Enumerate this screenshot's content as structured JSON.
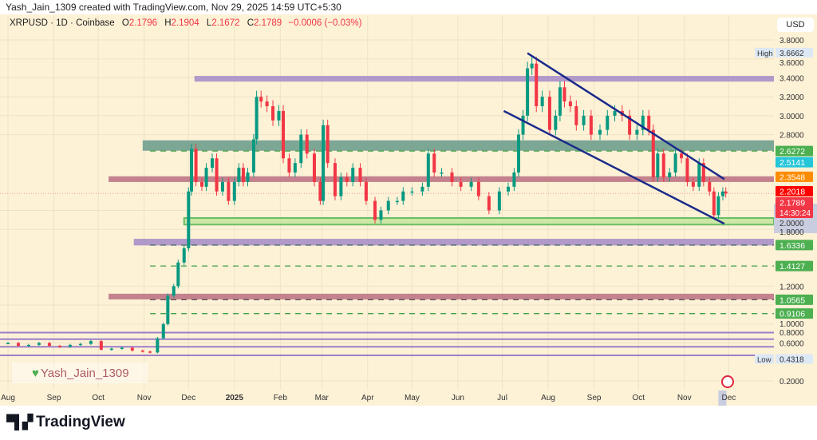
{
  "credit": "Yash_Jain_1309 created with TradingView.com, Nov 29, 2025 14:59 UTC+5:30",
  "legend": {
    "symbol": "XRPUSD · 1D · Coinbase",
    "o_label": "O",
    "o": "2.1796",
    "h_label": "H",
    "h": "2.1904",
    "l_label": "L",
    "l": "2.1672",
    "c_label": "C",
    "c": "2.1789",
    "change": "−0.0006 (−0.03%)"
  },
  "currency": "USD",
  "watermark": "Yash_Jain_1309",
  "brand": "TradingView",
  "chart_data": {
    "type": "candlestick",
    "series_note_values": "approximate closes read from chart",
    "colors": {
      "up": "#089981",
      "down": "#f23645",
      "background": "#fdf1d6"
    },
    "ylim": [
      0.1,
      3.95
    ],
    "y_ticks": [
      "3.8000",
      "3.6000",
      "3.4000",
      "3.2000",
      "3.0000",
      "2.8000",
      "2.0000",
      "1.8000",
      "1.2000",
      "1.0000",
      "0.8000",
      "0.6000",
      "0.2000"
    ],
    "x_ticks": [
      {
        "label": "Aug",
        "date": "2024-08-01"
      },
      {
        "label": "Sep",
        "date": "2024-09-01"
      },
      {
        "label": "Oct",
        "date": "2024-10-01"
      },
      {
        "label": "Nov",
        "date": "2024-11-01"
      },
      {
        "label": "Dec",
        "date": "2024-12-01"
      },
      {
        "label": "2025",
        "date": "2025-01-01"
      },
      {
        "label": "Feb",
        "date": "2025-02-01"
      },
      {
        "label": "Mar",
        "date": "2025-03-01"
      },
      {
        "label": "Apr",
        "date": "2025-04-01"
      },
      {
        "label": "May",
        "date": "2025-05-01"
      },
      {
        "label": "Jun",
        "date": "2025-06-01"
      },
      {
        "label": "Jul",
        "date": "2025-07-01"
      },
      {
        "label": "Aug",
        "date": "2025-08-01"
      },
      {
        "label": "Sep",
        "date": "2025-09-01"
      },
      {
        "label": "Oct",
        "date": "2025-10-01"
      },
      {
        "label": "Nov",
        "date": "2025-11-01"
      },
      {
        "label": "Dec",
        "date": "2025-12-01"
      }
    ],
    "closes": [
      [
        "2024-08-01",
        0.6
      ],
      [
        "2024-08-08",
        0.57
      ],
      [
        "2024-08-15",
        0.58
      ],
      [
        "2024-08-22",
        0.6
      ],
      [
        "2024-08-29",
        0.57
      ],
      [
        "2024-09-05",
        0.56
      ],
      [
        "2024-09-12",
        0.58
      ],
      [
        "2024-09-19",
        0.59
      ],
      [
        "2024-09-26",
        0.62
      ],
      [
        "2024-10-03",
        0.53
      ],
      [
        "2024-10-10",
        0.54
      ],
      [
        "2024-10-17",
        0.55
      ],
      [
        "2024-10-24",
        0.52
      ],
      [
        "2024-10-31",
        0.51
      ],
      [
        "2024-11-05",
        0.5
      ],
      [
        "2024-11-10",
        0.65
      ],
      [
        "2024-11-14",
        0.8
      ],
      [
        "2024-11-17",
        1.1
      ],
      [
        "2024-11-21",
        1.2
      ],
      [
        "2024-11-24",
        1.45
      ],
      [
        "2024-11-28",
        1.6
      ],
      [
        "2024-12-01",
        2.2
      ],
      [
        "2024-12-03",
        2.65
      ],
      [
        "2024-12-06",
        2.3
      ],
      [
        "2024-12-10",
        2.25
      ],
      [
        "2024-12-13",
        2.45
      ],
      [
        "2024-12-17",
        2.55
      ],
      [
        "2024-12-20",
        2.2
      ],
      [
        "2024-12-24",
        2.3
      ],
      [
        "2024-12-28",
        2.1
      ],
      [
        "2025-01-01",
        2.3
      ],
      [
        "2025-01-04",
        2.45
      ],
      [
        "2025-01-07",
        2.3
      ],
      [
        "2025-01-10",
        2.4
      ],
      [
        "2025-01-14",
        2.75
      ],
      [
        "2025-01-16",
        3.2
      ],
      [
        "2025-01-19",
        3.15
      ],
      [
        "2025-01-23",
        3.1
      ],
      [
        "2025-01-27",
        2.95
      ],
      [
        "2025-01-31",
        3.05
      ],
      [
        "2025-02-03",
        2.55
      ],
      [
        "2025-02-07",
        2.4
      ],
      [
        "2025-02-11",
        2.5
      ],
      [
        "2025-02-15",
        2.8
      ],
      [
        "2025-02-19",
        2.6
      ],
      [
        "2025-02-24",
        2.3
      ],
      [
        "2025-02-28",
        2.1
      ],
      [
        "2025-03-02",
        2.9
      ],
      [
        "2025-03-05",
        2.5
      ],
      [
        "2025-03-10",
        2.15
      ],
      [
        "2025-03-14",
        2.35
      ],
      [
        "2025-03-18",
        2.3
      ],
      [
        "2025-03-22",
        2.45
      ],
      [
        "2025-03-27",
        2.3
      ],
      [
        "2025-03-31",
        2.1
      ],
      [
        "2025-04-06",
        1.9
      ],
      [
        "2025-04-10",
        2.0
      ],
      [
        "2025-04-15",
        2.1
      ],
      [
        "2025-04-21",
        2.1
      ],
      [
        "2025-04-25",
        2.2
      ],
      [
        "2025-05-01",
        2.2
      ],
      [
        "2025-05-08",
        2.25
      ],
      [
        "2025-05-12",
        2.6
      ],
      [
        "2025-05-16",
        2.4
      ],
      [
        "2025-05-21",
        2.4
      ],
      [
        "2025-05-28",
        2.3
      ],
      [
        "2025-06-03",
        2.25
      ],
      [
        "2025-06-10",
        2.3
      ],
      [
        "2025-06-15",
        2.15
      ],
      [
        "2025-06-22",
        2.0
      ],
      [
        "2025-06-29",
        2.2
      ],
      [
        "2025-07-05",
        2.25
      ],
      [
        "2025-07-09",
        2.4
      ],
      [
        "2025-07-12",
        2.8
      ],
      [
        "2025-07-15",
        3.0
      ],
      [
        "2025-07-18",
        3.5
      ],
      [
        "2025-07-21",
        3.55
      ],
      [
        "2025-07-24",
        3.1
      ],
      [
        "2025-07-28",
        3.2
      ],
      [
        "2025-08-02",
        2.85
      ],
      [
        "2025-08-06",
        3.0
      ],
      [
        "2025-08-09",
        3.3
      ],
      [
        "2025-08-12",
        3.15
      ],
      [
        "2025-08-16",
        3.1
      ],
      [
        "2025-08-20",
        2.9
      ],
      [
        "2025-08-25",
        3.0
      ],
      [
        "2025-08-30",
        2.8
      ],
      [
        "2025-09-05",
        2.85
      ],
      [
        "2025-09-10",
        3.0
      ],
      [
        "2025-09-15",
        3.05
      ],
      [
        "2025-09-20",
        3.0
      ],
      [
        "2025-09-25",
        2.8
      ],
      [
        "2025-09-30",
        2.85
      ],
      [
        "2025-10-04",
        3.0
      ],
      [
        "2025-10-08",
        2.85
      ],
      [
        "2025-10-11",
        2.35
      ],
      [
        "2025-10-14",
        2.6
      ],
      [
        "2025-10-18",
        2.35
      ],
      [
        "2025-10-22",
        2.4
      ],
      [
        "2025-10-26",
        2.6
      ],
      [
        "2025-10-30",
        2.55
      ],
      [
        "2025-11-03",
        2.3
      ],
      [
        "2025-11-07",
        2.25
      ],
      [
        "2025-11-11",
        2.5
      ],
      [
        "2025-11-14",
        2.3
      ],
      [
        "2025-11-18",
        2.2
      ],
      [
        "2025-11-21",
        1.95
      ],
      [
        "2025-11-24",
        2.15
      ],
      [
        "2025-11-27",
        2.2
      ],
      [
        "2025-11-29",
        2.1789
      ]
    ],
    "zones": [
      {
        "from": "2024-12-05",
        "low": 3.36,
        "high": 3.42,
        "color": "#a98fc9"
      },
      {
        "from": "2024-10-31",
        "low": 2.63,
        "high": 2.74,
        "color": "#6f9f8e"
      },
      {
        "from": "2024-10-08",
        "low": 2.3,
        "high": 2.36,
        "color": "#bd7585"
      },
      {
        "from": "2024-11-28",
        "low": 1.85,
        "high": 1.92,
        "color": "#c8e6a0",
        "border": "#5cb85c"
      },
      {
        "from": "2024-10-25",
        "low": 1.63,
        "high": 1.7,
        "color": "#a98fc9"
      },
      {
        "from": "2024-10-08",
        "low": 1.06,
        "high": 1.12,
        "color": "#bd7585"
      }
    ],
    "dashed_levels": [
      {
        "value": 2.6272,
        "color": "#43a047"
      },
      {
        "value": 1.6336,
        "color": "#4d6b6b"
      },
      {
        "value": 1.4127,
        "color": "#43a047"
      },
      {
        "value": 1.0565,
        "color": "#555"
      },
      {
        "value": 0.9106,
        "color": "#43a047"
      }
    ],
    "lines": [
      0.71,
      0.64,
      0.56,
      0.47
    ],
    "channel": [
      {
        "from": [
          "2025-07-18",
          3.66
        ],
        "to": [
          "2025-11-28",
          2.33
        ]
      },
      {
        "from": [
          "2025-07-02",
          3.05
        ],
        "to": [
          "2025-11-28",
          1.86
        ]
      }
    ],
    "price_tags": [
      {
        "value": "2.6272",
        "color": "#4caf50"
      },
      {
        "value": "2.5141",
        "color": "#26c6da"
      },
      {
        "value": "2.3548",
        "color": "#ff8c00"
      },
      {
        "value": "2.2018",
        "color": "#ff0000"
      },
      {
        "value": "2.1789",
        "color": "#f23645",
        "countdown": "14:30:24"
      },
      {
        "value": "1.6336",
        "color": "#4caf50"
      },
      {
        "value": "1.4127",
        "color": "#4caf50"
      },
      {
        "value": "1.0565",
        "color": "#4caf50"
      },
      {
        "value": "0.9106",
        "color": "#4caf50"
      }
    ],
    "high": {
      "label": "High",
      "value": "3.6662"
    },
    "low": {
      "label": "Low",
      "value": "0.4318"
    }
  }
}
